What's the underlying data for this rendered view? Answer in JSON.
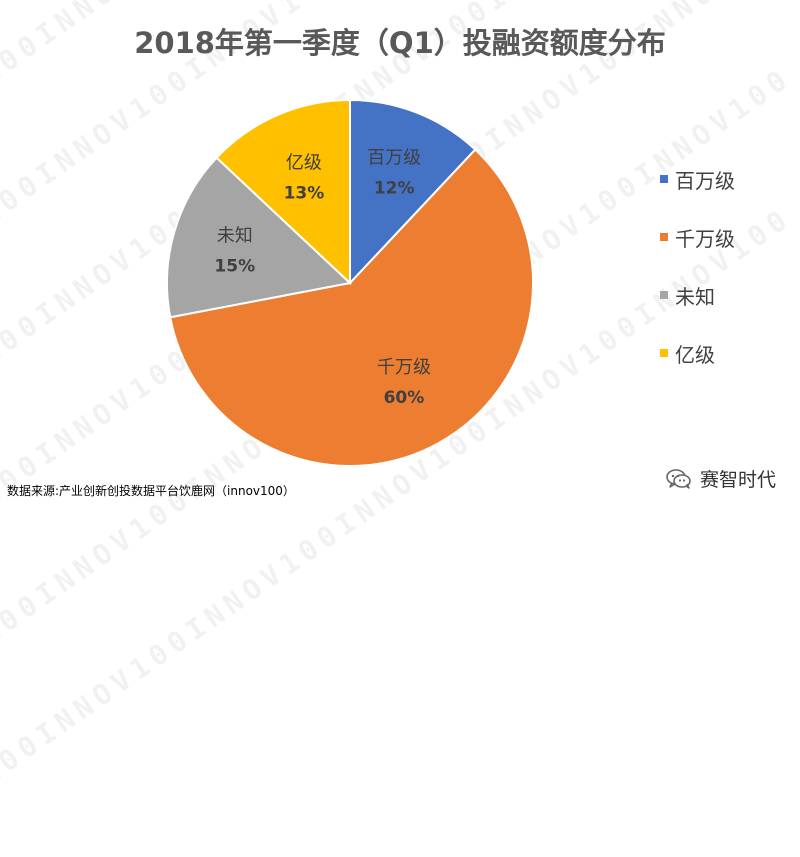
{
  "chart_data": {
    "type": "pie",
    "title": "2018年第一季度（Q1）投融资额度分布",
    "series": [
      {
        "label": "百万级",
        "value": 12,
        "display": "12%",
        "color": "#4472C4"
      },
      {
        "label": "千万级",
        "value": 60,
        "display": "60%",
        "color": "#ED7D31"
      },
      {
        "label": "未知",
        "value": 15,
        "display": "15%",
        "color": "#A5A5A5"
      },
      {
        "label": "亿级",
        "value": 13,
        "display": "13%",
        "color": "#FFC000"
      }
    ],
    "legend": {
      "position": "right",
      "items": [
        "百万级",
        "千万级",
        "未知",
        "亿级"
      ]
    }
  },
  "source_note": "数据来源:产业创新创投数据平台饮鹿网（innov100）",
  "brand": {
    "text": "赛智时代",
    "icon": "wechat-icon"
  },
  "watermark": "INNOV100INNOV100INNOV100INNOV100INNOV100INNOV100"
}
